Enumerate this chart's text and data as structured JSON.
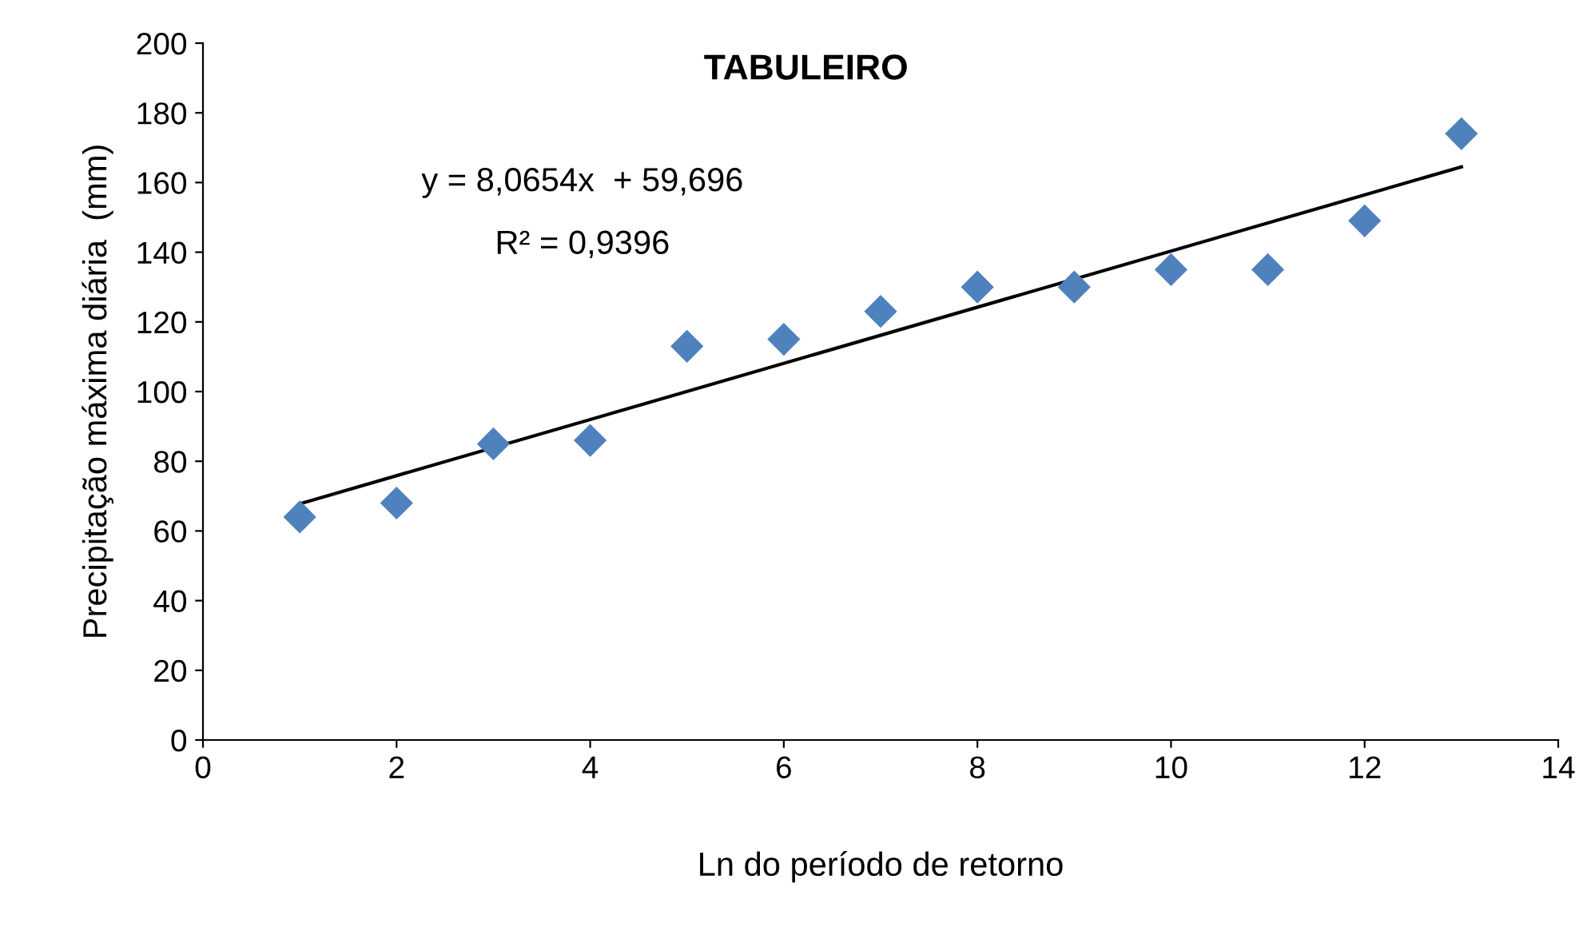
{
  "chart_data": {
    "type": "scatter",
    "title": "TABULEIRO",
    "xlabel": "Ln do período de retorno",
    "ylabel": "Precipitação máxima diária  (mm)",
    "x": [
      1,
      2,
      3,
      4,
      5,
      6,
      7,
      8,
      9,
      10,
      11,
      12,
      13
    ],
    "series": [
      {
        "color": "#4f81bd",
        "marker": "diamond",
        "values": [
          64,
          68,
          85,
          86,
          113,
          115,
          123,
          130,
          130,
          135,
          135,
          149,
          174
        ]
      },
      {
        "type": "line",
        "color": "#000000",
        "marker": "none",
        "line_style": "solid",
        "x": [
          1,
          13
        ],
        "values": [
          67.8,
          164.5
        ]
      }
    ],
    "annotations": [
      "y = 8,0654x  + 59,696",
      "R² = 0,9396"
    ],
    "xlim": [
      0,
      14
    ],
    "xticks": [
      0,
      2,
      4,
      6,
      8,
      10,
      12,
      14
    ],
    "ylim": [
      0,
      200
    ],
    "yticks": [
      0,
      20,
      40,
      60,
      80,
      100,
      120,
      140,
      160,
      180,
      200
    ],
    "grid": false,
    "legend": false
  }
}
